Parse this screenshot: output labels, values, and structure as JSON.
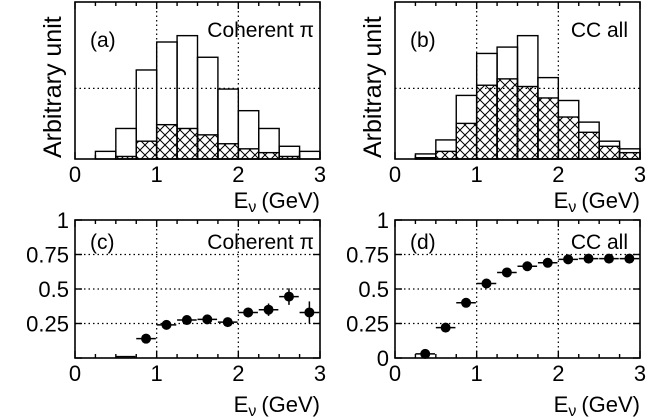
{
  "figure": {
    "ylabel_top": "Arbitrary unit",
    "xlabel_main": "E",
    "xlabel_sub": "ν",
    "xlabel_unit": "(GeV)"
  },
  "chart_data": [
    {
      "type": "histogram",
      "tag": "(a)",
      "title": "Coherent π",
      "xlabel": "Eν (GeV)",
      "ylabel": "Arbitrary unit",
      "xlim": [
        0,
        3
      ],
      "x_ticks": [
        0,
        1,
        2,
        3
      ],
      "grid": true,
      "bin_edges": [
        0.25,
        0.5,
        0.75,
        1.0,
        1.25,
        1.5,
        1.75,
        2.0,
        2.25,
        2.5,
        2.75,
        3.0
      ],
      "series": [
        {
          "style": "outline",
          "values": [
            0.06,
            0.24,
            0.7,
            0.92,
            0.97,
            0.8,
            0.55,
            0.38,
            0.24,
            0.1,
            0.06
          ]
        },
        {
          "style": "hatched",
          "values": [
            0.0,
            0.02,
            0.14,
            0.27,
            0.24,
            0.19,
            0.12,
            0.08,
            0.05,
            0.02,
            0.0
          ]
        }
      ]
    },
    {
      "type": "histogram",
      "tag": "(b)",
      "title": "CC all",
      "xlabel": "Eν (GeV)",
      "ylabel": "Arbitrary unit",
      "xlim": [
        0,
        3
      ],
      "x_ticks": [
        0,
        1,
        2,
        3
      ],
      "grid": true,
      "bin_edges": [
        0.25,
        0.5,
        0.75,
        1.0,
        1.25,
        1.5,
        1.75,
        2.0,
        2.25,
        2.5,
        2.75,
        3.0
      ],
      "series": [
        {
          "style": "outline",
          "values": [
            0.04,
            0.15,
            0.5,
            0.83,
            0.88,
            0.97,
            0.64,
            0.46,
            0.29,
            0.14,
            0.08
          ]
        },
        {
          "style": "hatched",
          "values": [
            0.01,
            0.06,
            0.28,
            0.58,
            0.63,
            0.57,
            0.48,
            0.33,
            0.21,
            0.1,
            0.05
          ]
        }
      ]
    },
    {
      "type": "scatter",
      "tag": "(c)",
      "title": "Coherent π",
      "xlabel": "Eν (GeV)",
      "xlim": [
        0,
        3
      ],
      "ylim": [
        0,
        1
      ],
      "x_ticks": [
        0,
        1,
        2,
        3
      ],
      "y_ticks": [
        "0.25",
        "0.5",
        "0.75",
        "1"
      ],
      "grid": true,
      "points": [
        {
          "x": 0.62,
          "y": 0.01,
          "xerr": 0.12,
          "yerr": 0.0,
          "marker": false
        },
        {
          "x": 0.87,
          "y": 0.14,
          "xerr": 0.12,
          "yerr": 0.015
        },
        {
          "x": 1.12,
          "y": 0.24,
          "xerr": 0.12,
          "yerr": 0.015
        },
        {
          "x": 1.37,
          "y": 0.275,
          "xerr": 0.12,
          "yerr": 0.015
        },
        {
          "x": 1.62,
          "y": 0.28,
          "xerr": 0.12,
          "yerr": 0.02
        },
        {
          "x": 1.87,
          "y": 0.26,
          "xerr": 0.12,
          "yerr": 0.025
        },
        {
          "x": 2.12,
          "y": 0.33,
          "xerr": 0.12,
          "yerr": 0.035
        },
        {
          "x": 2.37,
          "y": 0.35,
          "xerr": 0.12,
          "yerr": 0.045
        },
        {
          "x": 2.62,
          "y": 0.445,
          "xerr": 0.12,
          "yerr": 0.06
        },
        {
          "x": 2.87,
          "y": 0.33,
          "xerr": 0.12,
          "yerr": 0.08
        }
      ]
    },
    {
      "type": "scatter",
      "tag": "(d)",
      "title": "CC all",
      "xlabel": "Eν (GeV)",
      "xlim": [
        0,
        3
      ],
      "ylim": [
        0,
        1
      ],
      "x_ticks": [
        0,
        1,
        2,
        3
      ],
      "y_ticks": [
        "0",
        "0.25",
        "0.5",
        "0.75",
        "1"
      ],
      "grid": true,
      "points": [
        {
          "x": 0.37,
          "y": 0.03,
          "xerr": 0.12,
          "yerr": 0.005
        },
        {
          "x": 0.62,
          "y": 0.22,
          "xerr": 0.12,
          "yerr": 0.008
        },
        {
          "x": 0.87,
          "y": 0.4,
          "xerr": 0.12,
          "yerr": 0.008
        },
        {
          "x": 1.12,
          "y": 0.54,
          "xerr": 0.12,
          "yerr": 0.008
        },
        {
          "x": 1.37,
          "y": 0.62,
          "xerr": 0.12,
          "yerr": 0.008
        },
        {
          "x": 1.62,
          "y": 0.665,
          "xerr": 0.12,
          "yerr": 0.008
        },
        {
          "x": 1.87,
          "y": 0.69,
          "xerr": 0.12,
          "yerr": 0.008
        },
        {
          "x": 2.12,
          "y": 0.715,
          "xerr": 0.12,
          "yerr": 0.008
        },
        {
          "x": 2.37,
          "y": 0.72,
          "xerr": 0.12,
          "yerr": 0.008
        },
        {
          "x": 2.62,
          "y": 0.72,
          "xerr": 0.12,
          "yerr": 0.008
        },
        {
          "x": 2.87,
          "y": 0.72,
          "xerr": 0.12,
          "yerr": 0.008
        }
      ]
    }
  ]
}
